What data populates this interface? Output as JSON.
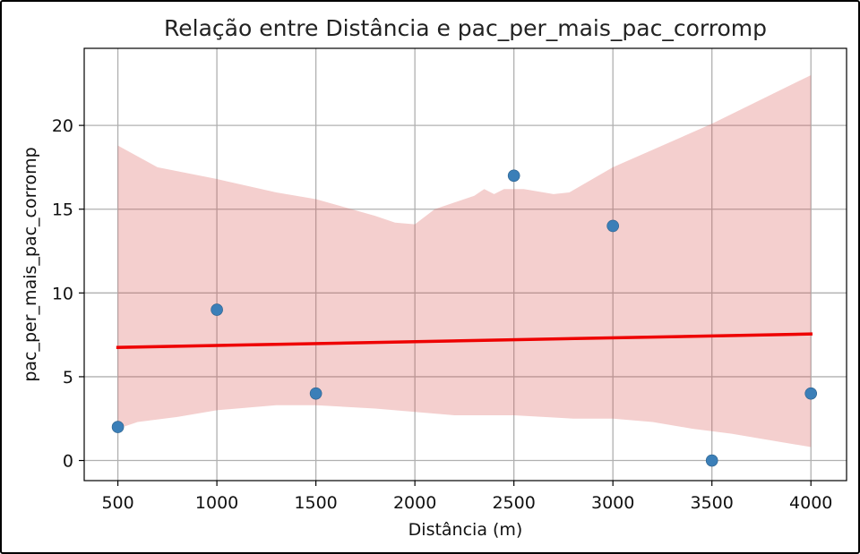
{
  "chart_data": {
    "type": "scatter",
    "title": "Relação entre Distância e pac_per_mais_pac_corromp",
    "xlabel": "Distância (m)",
    "ylabel": "pac_per_mais_pac_corromp",
    "xlim": [
      330,
      4180
    ],
    "ylim": [
      -1.2,
      24.6
    ],
    "xticks": [
      500,
      1000,
      1500,
      2000,
      2500,
      3000,
      3500,
      4000
    ],
    "yticks": [
      0,
      5,
      10,
      15,
      20
    ],
    "grid": true,
    "legend": "none",
    "series": [
      {
        "x": [
          500,
          1000,
          1500,
          2500,
          3000,
          3500,
          4000
        ],
        "y": [
          2,
          9,
          4,
          17,
          14,
          0,
          4
        ],
        "color": "#3b7fb8"
      }
    ],
    "regression_line": {
      "x": [
        500,
        4000
      ],
      "y": [
        6.75,
        7.55
      ],
      "color": "#ee0000"
    },
    "confidence_band": {
      "color": "#d9534f",
      "opacity": 0.28,
      "upper": [
        [
          500,
          18.8
        ],
        [
          700,
          17.5
        ],
        [
          1000,
          16.8
        ],
        [
          1300,
          16.0
        ],
        [
          1500,
          15.6
        ],
        [
          1800,
          14.6
        ],
        [
          1900,
          14.2
        ],
        [
          2000,
          14.1
        ],
        [
          2100,
          15.0
        ],
        [
          2300,
          15.8
        ],
        [
          2350,
          16.2
        ],
        [
          2400,
          15.9
        ],
        [
          2450,
          16.2
        ],
        [
          2550,
          16.2
        ],
        [
          2700,
          15.9
        ],
        [
          2780,
          16.0
        ],
        [
          3000,
          17.5
        ],
        [
          3500,
          20.1
        ],
        [
          4000,
          23.0
        ]
      ],
      "lower": [
        [
          500,
          1.9
        ],
        [
          600,
          2.3
        ],
        [
          800,
          2.6
        ],
        [
          1000,
          3.0
        ],
        [
          1100,
          3.1
        ],
        [
          1300,
          3.3
        ],
        [
          1500,
          3.3
        ],
        [
          1800,
          3.1
        ],
        [
          2000,
          2.9
        ],
        [
          2200,
          2.7
        ],
        [
          2500,
          2.7
        ],
        [
          2800,
          2.5
        ],
        [
          3000,
          2.5
        ],
        [
          3200,
          2.3
        ],
        [
          3400,
          1.9
        ],
        [
          3600,
          1.6
        ],
        [
          3800,
          1.2
        ],
        [
          4000,
          0.8
        ]
      ]
    }
  }
}
